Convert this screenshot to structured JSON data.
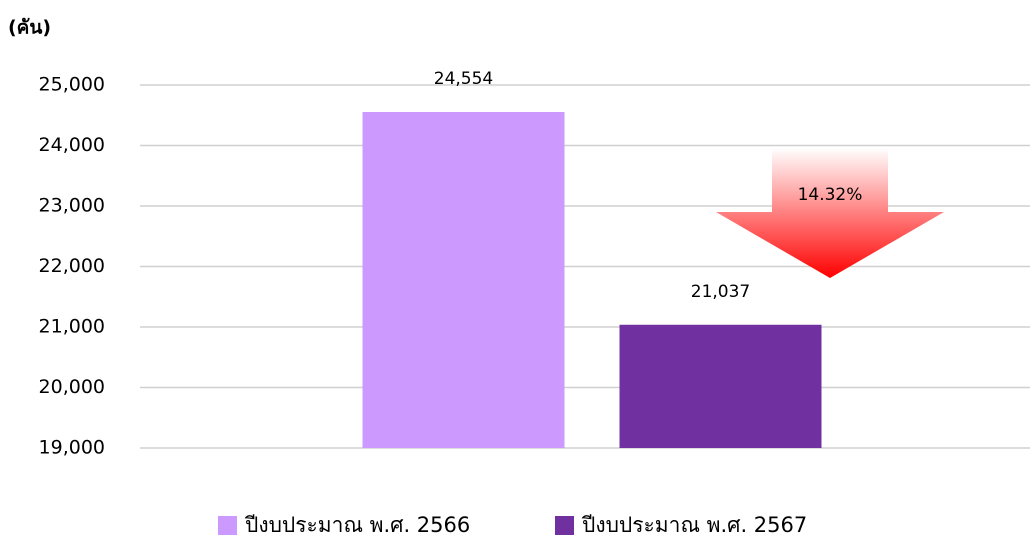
{
  "chart_data": {
    "type": "bar",
    "y_axis_label": "(คัน)",
    "categories": [
      null
    ],
    "series": [
      {
        "name": "ปีงบประมาณ พ.ศ. 2566",
        "color": "#cc99ff",
        "values": [
          24554
        ],
        "value_labels": [
          "24,554"
        ]
      },
      {
        "name": "ปีงบประมาณ พ.ศ. 2567",
        "color": "#7030a0",
        "values": [
          21037
        ],
        "value_labels": [
          "21,037"
        ]
      }
    ],
    "annotations": [
      {
        "label": "14.32%"
      }
    ],
    "ylim": [
      19000,
      25000
    ],
    "yticks": [
      {
        "value": 19000,
        "label": "19,000"
      },
      {
        "value": 20000,
        "label": "20,000"
      },
      {
        "value": 21000,
        "label": "21,000"
      },
      {
        "value": 22000,
        "label": "22,000"
      },
      {
        "value": 23000,
        "label": "23,000"
      },
      {
        "value": 24000,
        "label": "24,000"
      },
      {
        "value": 25000,
        "label": "25,000"
      }
    ],
    "grid": true,
    "legend": "bottom"
  }
}
